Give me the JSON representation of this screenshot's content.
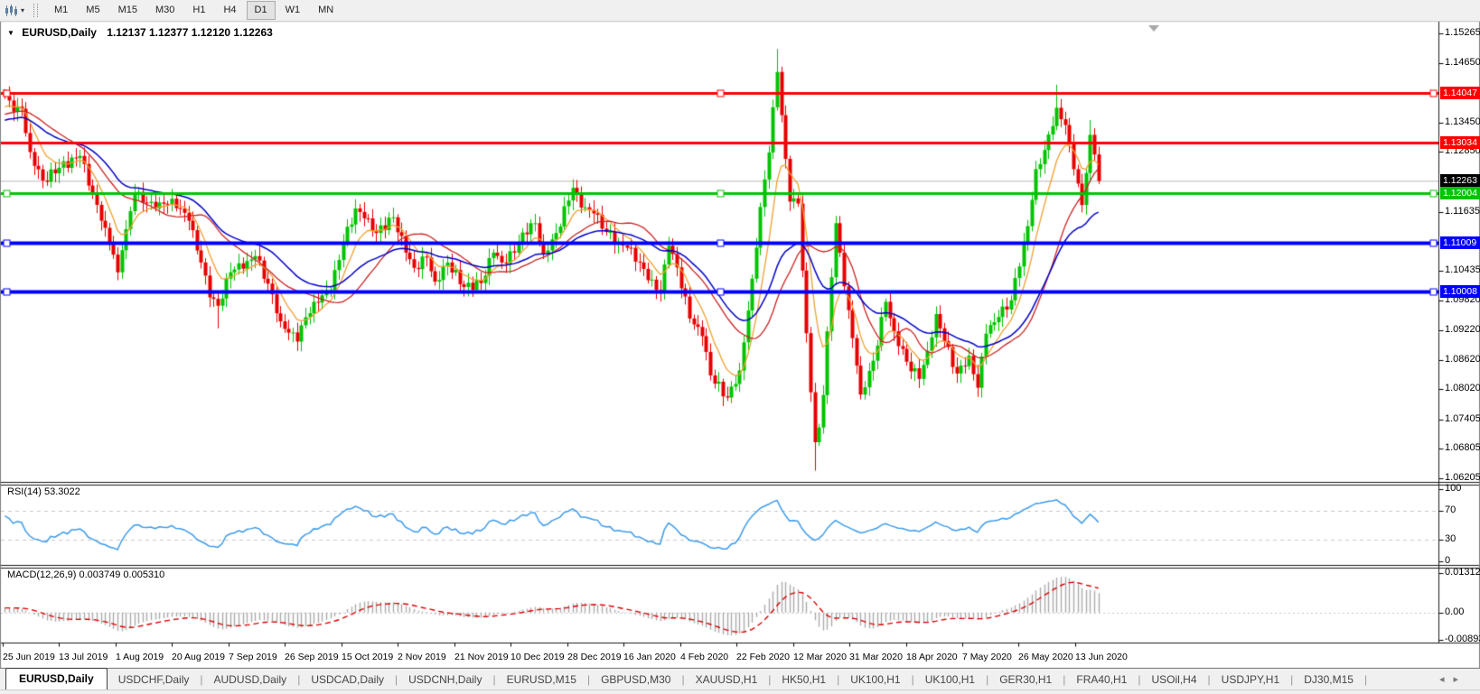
{
  "toolbar": {
    "chart_icon": "candlestick-chart-icon",
    "dropdown_caret": "▾",
    "timeframes": [
      "M1",
      "M5",
      "M15",
      "M30",
      "H1",
      "H4",
      "D1",
      "W1",
      "MN"
    ],
    "active_timeframe": "D1"
  },
  "chart": {
    "title_symbol": "EURUSD,Daily",
    "title_ohlc": "1.12137 1.12377 1.12120 1.12263",
    "title_marker": "▼"
  },
  "rsi_panel": {
    "label": "RSI(14) 53.3022",
    "ticks": [
      100,
      70,
      30,
      0
    ],
    "dashed_levels": [
      70,
      30
    ]
  },
  "macd_panel": {
    "label": "MACD(12,26,9) 0.003749 0.005310",
    "ticks": [
      0.013121,
      0.0,
      -0.008931
    ],
    "tick_texts": [
      "0.013121",
      "0.00",
      "-0.008931"
    ]
  },
  "price_axis": {
    "plain_ticks": [
      "1.15265",
      "1.14650",
      "1.13450",
      "1.12850",
      "1.11635",
      "1.10435",
      "1.09820",
      "1.09220",
      "1.08620",
      "1.08020",
      "1.07405",
      "1.06805",
      "1.06205"
    ],
    "badges": [
      {
        "text": "1.14047",
        "bg": "#FF0000"
      },
      {
        "text": "1.13034",
        "bg": "#FF0000"
      },
      {
        "text": "1.12263",
        "bg": "#000000"
      },
      {
        "text": "1.12004",
        "bg": "#00C400"
      },
      {
        "text": "1.11009",
        "bg": "#0000FF"
      },
      {
        "text": "1.10008",
        "bg": "#0000FF"
      }
    ]
  },
  "date_axis": {
    "labels": [
      "25 Jun 2019",
      "13 Jul 2019",
      "1 Aug 2019",
      "20 Aug 2019",
      "7 Sep 2019",
      "26 Sep 2019",
      "15 Oct 2019",
      "2 Nov 2019",
      "21 Nov 2019",
      "10 Dec 2019",
      "28 Dec 2019",
      "16 Jan 2020",
      "4 Feb 2020",
      "22 Feb 2020",
      "12 Mar 2020",
      "31 Mar 2020",
      "18 Apr 2020",
      "7 May 2020",
      "26 May 2020",
      "13 Jun 2020"
    ]
  },
  "tabs": {
    "items": [
      "EURUSD,Daily",
      "USDCHF,Daily",
      "AUDUSD,Daily",
      "USDCAD,Daily",
      "USDCNH,Daily",
      "EURUSD,M15",
      "GBPUSD,M30",
      "XAUUSD,H1",
      "HK50,H1",
      "UK100,H1",
      "UK100,H1",
      "GER30,H1",
      "FRA40,H1",
      "USOil,H4",
      "USDJPY,H1",
      "DJ30,M15"
    ],
    "active_index": 0,
    "scroll_left": "◂",
    "scroll_right": "▸"
  },
  "colors": {
    "candle_up": "#00C400",
    "candle_down": "#E80000",
    "ma_fast": "#F0A030",
    "ma_mid": "#CC2222",
    "ma_slow": "#0000C8",
    "rsi_line": "#3D9BE9",
    "macd_hist": "#ABABAB",
    "macd_signal": "#DD0000",
    "dashed_level": "#C8C8C8",
    "current_price_line": "#B8B8B8",
    "shift_marker": "#A8A8A8"
  },
  "chart_data": {
    "type": "candlestick",
    "symbol": "EURUSD",
    "timeframe": "Daily",
    "title": "EURUSD,Daily",
    "ohlc_header": {
      "open": 1.12137,
      "high": 1.12377,
      "low": 1.1212,
      "close": 1.12263
    },
    "visible_range": {
      "price_min": 1.06205,
      "price_max": 1.15265,
      "date_start": "25 Jun 2019",
      "date_end": "13 Jun 2020"
    },
    "num_candles": 263,
    "prehistory": {
      "count": 60,
      "start": 1.125,
      "end": 1.138
    },
    "close_anchors": [
      [
        0,
        1.1399
      ],
      [
        2,
        1.1367
      ],
      [
        4,
        1.1373
      ],
      [
        6,
        1.1285
      ],
      [
        9,
        1.1227
      ],
      [
        13,
        1.1253
      ],
      [
        18,
        1.1277
      ],
      [
        23,
        1.1145
      ],
      [
        26,
        1.1076
      ],
      [
        27,
        1.104
      ],
      [
        28,
        1.1085
      ],
      [
        31,
        1.12
      ],
      [
        36,
        1.117
      ],
      [
        40,
        1.119
      ],
      [
        44,
        1.1145
      ],
      [
        47,
        1.106
      ],
      [
        49,
        1.0989
      ],
      [
        51,
        1.0972
      ],
      [
        54,
        1.104
      ],
      [
        58,
        1.1063
      ],
      [
        60,
        1.1073
      ],
      [
        63,
        1.1017
      ],
      [
        66,
        1.094
      ],
      [
        70,
        1.0899
      ],
      [
        71,
        1.0932
      ],
      [
        74,
        1.098
      ],
      [
        78,
        1.1004
      ],
      [
        81,
        1.11
      ],
      [
        84,
        1.117
      ],
      [
        86,
        1.115
      ],
      [
        89,
        1.112
      ],
      [
        93,
        1.1152
      ],
      [
        96,
        1.108
      ],
      [
        98,
        1.1049
      ],
      [
        101,
        1.107
      ],
      [
        103,
        1.1021
      ],
      [
        106,
        1.106
      ],
      [
        110,
        1.101
      ],
      [
        114,
        1.1018
      ],
      [
        117,
        1.108
      ],
      [
        119,
        1.106
      ],
      [
        122,
        1.108
      ],
      [
        124,
        1.1121
      ],
      [
        127,
        1.114
      ],
      [
        129,
        1.1078
      ],
      [
        132,
        1.112
      ],
      [
        136,
        1.1212
      ],
      [
        138,
        1.1172
      ],
      [
        141,
        1.116
      ],
      [
        144,
        1.1122
      ],
      [
        147,
        1.11
      ],
      [
        149,
        1.109
      ],
      [
        152,
        1.106
      ],
      [
        154,
        1.1024
      ],
      [
        157,
        1.1
      ],
      [
        159,
        1.1094
      ],
      [
        161,
        1.105
      ],
      [
        164,
        1.0946
      ],
      [
        167,
        1.091
      ],
      [
        169,
        1.083
      ],
      [
        173,
        1.0785
      ],
      [
        176,
        1.084
      ],
      [
        179,
        1.1027
      ],
      [
        181,
        1.1173
      ],
      [
        183,
        1.1284
      ],
      [
        185,
        1.1448
      ],
      [
        186,
        1.136
      ],
      [
        187,
        1.1271
      ],
      [
        188,
        1.1184
      ],
      [
        190,
        1.118
      ],
      [
        192,
        1.0916
      ],
      [
        194,
        1.0694
      ],
      [
        195,
        1.0724
      ],
      [
        196,
        1.079
      ],
      [
        198,
        1.103
      ],
      [
        199,
        1.114
      ],
      [
        200,
        1.108
      ],
      [
        202,
        1.0963
      ],
      [
        204,
        1.085
      ],
      [
        205,
        1.0791
      ],
      [
        208,
        1.086
      ],
      [
        211,
        1.098
      ],
      [
        213,
        1.092
      ],
      [
        216,
        1.0858
      ],
      [
        219,
        1.0823
      ],
      [
        221,
        1.088
      ],
      [
        223,
        1.0955
      ],
      [
        225,
        1.09
      ],
      [
        228,
        1.0834
      ],
      [
        231,
        1.087
      ],
      [
        233,
        1.0805
      ],
      [
        235,
        1.0915
      ],
      [
        238,
        1.0949
      ],
      [
        241,
        1.0983
      ],
      [
        244,
        1.1101
      ],
      [
        245,
        1.1134
      ],
      [
        247,
        1.125
      ],
      [
        249,
        1.1289
      ],
      [
        252,
        1.1375
      ],
      [
        254,
        1.134
      ],
      [
        256,
        1.125
      ],
      [
        258,
        1.1177
      ],
      [
        260,
        1.132
      ],
      [
        261,
        1.128
      ],
      [
        262,
        1.1226
      ]
    ],
    "wick_overrides": {
      "0": {
        "high": 1.1412
      },
      "28": {
        "low": 1.1027
      },
      "51": {
        "low": 1.0926
      },
      "71": {
        "low": 1.0879
      },
      "173": {
        "low": 1.0778
      },
      "185": {
        "high": 1.1495
      },
      "194": {
        "low": 1.0636
      },
      "252": {
        "high": 1.1422
      },
      "260": {
        "high": 1.135
      }
    },
    "moving_averages": [
      {
        "name": "fast",
        "method": "ema",
        "period": 8
      },
      {
        "name": "mid",
        "method": "sma",
        "period": 20
      },
      {
        "name": "slow",
        "method": "ema",
        "period": 32
      }
    ],
    "horizontal_lines": [
      {
        "price": 1.14047,
        "color": "#FF0000",
        "width": 3,
        "handles": true
      },
      {
        "price": 1.13034,
        "color": "#FF0000",
        "width": 3,
        "handles": false
      },
      {
        "price": 1.12004,
        "color": "#00C400",
        "width": 3,
        "handles": true
      },
      {
        "price": 1.11009,
        "color": "#0000FF",
        "width": 4,
        "handles": true
      },
      {
        "price": 1.10008,
        "color": "#0000FF",
        "width": 4,
        "handles": true
      }
    ],
    "current_price": 1.12263,
    "indicators": [
      {
        "name": "RSI",
        "period": 14,
        "current_value": 53.3022,
        "levels": [
          70,
          30
        ],
        "range": [
          0,
          100
        ]
      },
      {
        "name": "MACD",
        "params": [
          12,
          26,
          9
        ],
        "macd_value": 0.003749,
        "signal_value": 0.00531,
        "axis_range": [
          0.0145,
          -0.0096
        ]
      }
    ]
  }
}
